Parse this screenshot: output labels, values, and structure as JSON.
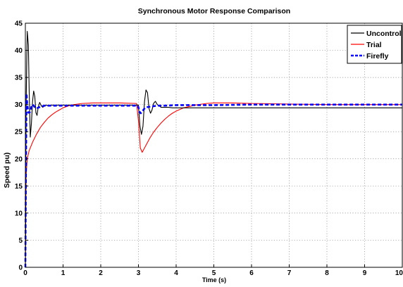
{
  "chart_data": {
    "type": "line",
    "title": "Synchronous Motor Response Comparison",
    "xlabel": "Time (s)",
    "ylabel": "Speed pu)",
    "xlim": [
      0,
      10
    ],
    "ylim": [
      0,
      45
    ],
    "xticks": [
      "0",
      "1",
      "2",
      "3",
      "4",
      "5",
      "6",
      "7",
      "8",
      "9",
      "10"
    ],
    "yticks": [
      "0",
      "5",
      "10",
      "15",
      "20",
      "25",
      "30",
      "35",
      "40",
      "45"
    ],
    "grid": true,
    "legend_position": "top-right",
    "series": [
      {
        "name": "Uncontrol",
        "color": "#000000",
        "style": "solid",
        "x": [
          0,
          0.02,
          0.05,
          0.08,
          0.1,
          0.13,
          0.16,
          0.19,
          0.22,
          0.25,
          0.28,
          0.31,
          0.34,
          0.38,
          0.42,
          0.46,
          0.5,
          0.55,
          0.6,
          0.7,
          0.8,
          1.0,
          1.5,
          2.0,
          2.5,
          3.0,
          3.04,
          3.08,
          3.12,
          3.16,
          3.2,
          3.24,
          3.28,
          3.32,
          3.36,
          3.4,
          3.45,
          3.5,
          3.6,
          3.7,
          3.8,
          3.9,
          4.0,
          5.0,
          6.0,
          7.0,
          8.0,
          9.0,
          10.0
        ],
        "y": [
          0,
          30,
          43.5,
          41,
          33,
          24,
          26.5,
          30.5,
          32.5,
          31.5,
          28.5,
          28,
          29.5,
          30.4,
          29.8,
          29.5,
          29.7,
          29.9,
          29.8,
          29.9,
          29.9,
          29.9,
          29.9,
          29.9,
          29.9,
          29.9,
          26,
          24.5,
          26,
          30.5,
          32.7,
          32.2,
          29.3,
          28.4,
          29,
          30.2,
          30.6,
          30,
          29.5,
          29.5,
          29.5,
          29.4,
          29.4,
          29.4,
          29.4,
          29.4,
          29.4,
          29.4,
          29.4
        ]
      },
      {
        "name": "Trial",
        "color": "#ff0000",
        "style": "solid",
        "x": [
          0,
          0.02,
          0.05,
          0.1,
          0.2,
          0.3,
          0.4,
          0.5,
          0.6,
          0.7,
          0.8,
          0.9,
          1.0,
          1.2,
          1.5,
          1.8,
          2.0,
          2.5,
          2.95,
          3.0,
          3.05,
          3.1,
          3.2,
          3.3,
          3.4,
          3.5,
          3.6,
          3.7,
          3.8,
          3.9,
          4.0,
          4.2,
          4.5,
          4.8,
          5.0,
          5.5,
          6.0,
          7.0,
          8.0,
          9.0,
          10.0
        ],
        "y": [
          0,
          17,
          20,
          21.5,
          23.2,
          24.6,
          25.8,
          26.7,
          27.5,
          28.1,
          28.6,
          29,
          29.4,
          29.9,
          30.2,
          30.3,
          30.3,
          30.3,
          30.2,
          27,
          22,
          21.2,
          22.5,
          23.8,
          24.9,
          25.8,
          26.6,
          27.3,
          27.9,
          28.4,
          28.8,
          29.4,
          29.9,
          30.2,
          30.3,
          30.3,
          30.2,
          30.1,
          30,
          30,
          30
        ]
      },
      {
        "name": "Firefly",
        "color": "#0000ff",
        "style": "dashed",
        "x": [
          0,
          0.01,
          0.03,
          0.05,
          0.08,
          0.12,
          0.16,
          0.2,
          0.25,
          0.3,
          0.4,
          0.5,
          0.7,
          1.0,
          1.5,
          2.0,
          2.5,
          2.98,
          3.0,
          3.03,
          3.06,
          3.1,
          3.15,
          3.2,
          3.3,
          3.4,
          3.5,
          3.7,
          4.0,
          5.0,
          6.0,
          7.0,
          8.0,
          9.0,
          10.0
        ],
        "y": [
          0,
          12,
          32,
          30,
          28.5,
          28.6,
          29.6,
          30,
          29.5,
          29.3,
          29.6,
          29.8,
          29.8,
          29.8,
          29.8,
          29.8,
          29.8,
          29.8,
          29.5,
          28.7,
          28.4,
          28.7,
          29.2,
          29.5,
          29.6,
          29.7,
          29.8,
          29.8,
          29.9,
          29.9,
          30,
          30,
          30,
          30,
          30
        ]
      }
    ]
  }
}
